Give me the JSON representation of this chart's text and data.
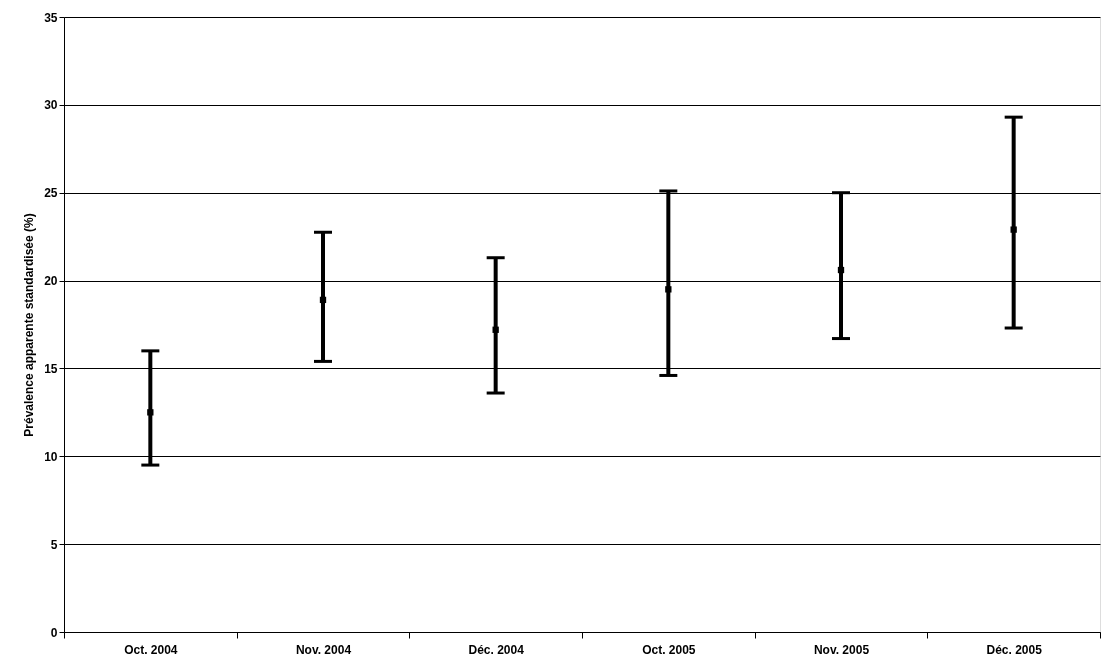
{
  "chart_data": {
    "type": "scatter",
    "ylabel": "Prévalence apparente standardisée (%)",
    "categories": [
      "Oct. 2004",
      "Nov. 2004",
      "Déc. 2004",
      "Oct. 2005",
      "Nov. 2005",
      "Déc. 2005"
    ],
    "values": [
      12.5,
      18.9,
      17.2,
      19.5,
      20.6,
      22.9
    ],
    "errors": [
      [
        9.5,
        16.0
      ],
      [
        15.4,
        22.75
      ],
      [
        13.6,
        21.3
      ],
      [
        14.6,
        25.1
      ],
      [
        16.7,
        25.0
      ],
      [
        17.3,
        29.3
      ]
    ],
    "color": "#000000",
    "marker": "square",
    "ylim": [
      0,
      35
    ],
    "yticks": [
      0,
      5,
      10,
      15,
      20,
      25,
      30,
      35
    ],
    "grid": "y"
  }
}
